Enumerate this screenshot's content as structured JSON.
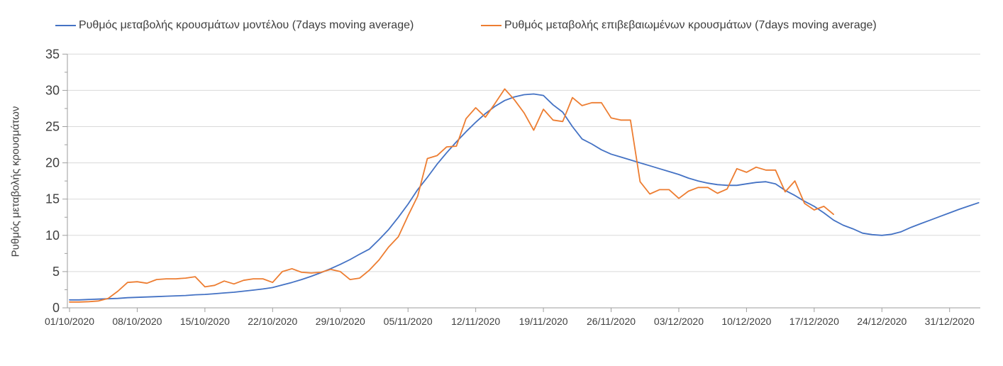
{
  "chart_data": {
    "type": "line",
    "title": "",
    "xlabel": "",
    "ylabel": "Ρυθμός μεταβολής κρουσμάτων",
    "ylim": [
      0,
      35
    ],
    "yticks": [
      0,
      5,
      10,
      15,
      20,
      25,
      30,
      35
    ],
    "y_minor_tick_step": 2.5,
    "grid": "horizontal-only",
    "legend_position": "top",
    "xtick_interval_days": 7,
    "xtick_labels": [
      "01/10/2020",
      "08/10/2020",
      "15/10/2020",
      "22/10/2020",
      "29/10/2020",
      "05/11/2020",
      "12/11/2020",
      "19/11/2020",
      "26/11/2020",
      "03/12/2020",
      "10/12/2020",
      "17/12/2020",
      "24/12/2020",
      "31/12/2020"
    ],
    "colors": {
      "model_line": "#4472C4",
      "confirmed_line": "#ED7D31",
      "gridline": "#D9D9D9",
      "axis": "#9E9E9E",
      "tick_text": "#404040"
    },
    "series": [
      {
        "id": "model",
        "name": "Ρυθμός μεταβολής κρουσμάτων μοντέλου (7days moving average)",
        "color": "#4472C4",
        "start_day_offset": 0,
        "values": [
          1.1,
          1.1,
          1.15,
          1.2,
          1.25,
          1.3,
          1.4,
          1.45,
          1.5,
          1.55,
          1.6,
          1.65,
          1.7,
          1.8,
          1.85,
          1.95,
          2.05,
          2.15,
          2.3,
          2.45,
          2.6,
          2.8,
          3.15,
          3.5,
          3.9,
          4.35,
          4.85,
          5.4,
          6.0,
          6.65,
          7.4,
          8.1,
          9.4,
          10.8,
          12.5,
          14.3,
          16.3,
          18.0,
          19.8,
          21.4,
          22.9,
          24.3,
          25.6,
          26.8,
          27.8,
          28.6,
          29.1,
          29.4,
          29.5,
          29.3,
          28.0,
          27.0,
          25.0,
          23.3,
          22.6,
          21.8,
          21.2,
          20.8,
          20.4,
          20.0,
          19.6,
          19.2,
          18.8,
          18.4,
          17.9,
          17.5,
          17.2,
          17.0,
          16.9,
          16.9,
          17.1,
          17.3,
          17.4,
          17.1,
          16.2,
          15.5,
          14.7,
          14.0,
          13.1,
          12.1,
          11.4,
          10.9,
          10.3,
          10.1,
          10.0,
          10.15,
          10.5,
          11.1,
          11.6,
          12.1,
          12.6,
          13.1,
          13.6,
          14.05,
          14.5
        ]
      },
      {
        "id": "confirmed",
        "name": "Ρυθμός μεταβολής επιβεβαιωμένων κρουσμάτων (7days moving average)",
        "color": "#ED7D31",
        "start_day_offset": 0,
        "values": [
          0.8,
          0.8,
          0.85,
          0.95,
          1.3,
          2.3,
          3.5,
          3.6,
          3.4,
          3.9,
          4.0,
          4.0,
          4.1,
          4.3,
          2.9,
          3.1,
          3.7,
          3.3,
          3.8,
          4.0,
          4.0,
          3.5,
          5.0,
          5.4,
          4.9,
          4.8,
          4.9,
          5.3,
          5.0,
          3.9,
          4.1,
          5.2,
          6.6,
          8.4,
          9.8,
          12.7,
          15.4,
          20.6,
          21.0,
          22.2,
          22.3,
          26.1,
          27.6,
          26.3,
          28.2,
          30.2,
          28.7,
          26.9,
          24.5,
          27.4,
          25.9,
          25.7,
          29.0,
          27.9,
          28.3,
          28.3,
          26.2,
          25.9,
          25.9,
          17.4,
          15.7,
          16.3,
          16.3,
          15.1,
          16.1,
          16.6,
          16.6,
          15.8,
          16.4,
          19.2,
          18.7,
          19.4,
          19.0,
          19.0,
          16.0,
          17.5,
          14.4,
          13.5,
          14.0,
          12.9
        ]
      }
    ]
  }
}
